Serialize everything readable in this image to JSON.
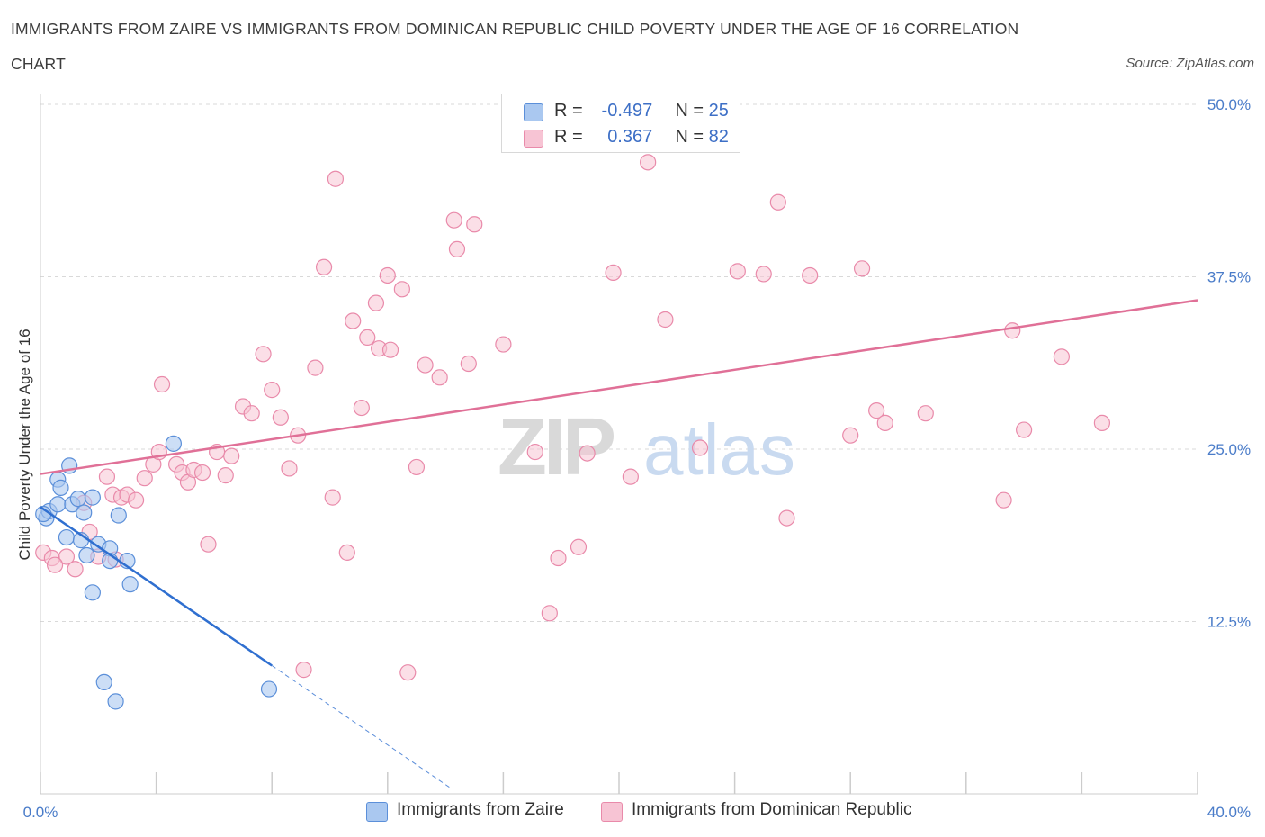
{
  "title_line1": "IMMIGRANTS FROM ZAIRE VS IMMIGRANTS FROM DOMINICAN REPUBLIC CHILD POVERTY UNDER THE AGE OF 16 CORRELATION",
  "title_line2": "CHART",
  "source": "Source: ZipAtlas.com",
  "watermark_zip": "ZIP",
  "watermark_atlas": "atlas",
  "legend": {
    "zaire": {
      "r_label": "R =",
      "r_value": "-0.497",
      "n_label": "N =",
      "n_value": "25"
    },
    "dominican": {
      "r_label": "R =",
      "r_value": "0.367",
      "n_label": "N =",
      "n_value": "82"
    }
  },
  "series_names": {
    "zaire": "Immigrants from Zaire",
    "dominican": "Immigrants from Dominican Republic"
  },
  "colors": {
    "zaire_fill": "#aac8f0",
    "zaire_stroke": "#5b8fd9",
    "zaire_line": "#2f6fd0",
    "dom_fill": "#f7c4d4",
    "dom_stroke": "#e98aaa",
    "dom_line": "#e07097",
    "axis_text": "#4a7cc9",
    "grid": "#d9d9d9"
  },
  "chart_data": {
    "type": "scatter",
    "title": "IMMIGRANTS FROM ZAIRE VS IMMIGRANTS FROM DOMINICAN REPUBLIC CHILD POVERTY UNDER THE AGE OF 16 CORRELATION CHART",
    "xlabel": "",
    "ylabel": "Child Poverty Under the Age of 16",
    "xlim": [
      0,
      40
    ],
    "ylim": [
      0,
      50
    ],
    "x_tick_labels": [
      "0.0%",
      "40.0%"
    ],
    "y_ticks": [
      12.5,
      25.0,
      37.5,
      50.0
    ],
    "y_tick_labels": [
      "12.5%",
      "25.0%",
      "37.5%",
      "50.0%"
    ],
    "grid": true,
    "series": [
      {
        "name": "Immigrants from Zaire",
        "r": -0.497,
        "n": 25,
        "trend": {
          "x0": 0.0,
          "y0": 20.8,
          "x1": 8.0,
          "y1": 9.3,
          "dashed_to_x": 14.2
        },
        "points": [
          [
            0.2,
            20.0
          ],
          [
            0.3,
            20.5
          ],
          [
            0.6,
            21.0
          ],
          [
            0.6,
            22.8
          ],
          [
            0.7,
            22.2
          ],
          [
            1.0,
            23.8
          ],
          [
            0.9,
            18.6
          ],
          [
            1.1,
            21.0
          ],
          [
            1.3,
            21.4
          ],
          [
            1.4,
            18.4
          ],
          [
            1.5,
            20.4
          ],
          [
            1.6,
            17.3
          ],
          [
            1.8,
            21.5
          ],
          [
            1.8,
            14.6
          ],
          [
            2.0,
            18.1
          ],
          [
            2.2,
            8.1
          ],
          [
            2.4,
            17.8
          ],
          [
            2.4,
            16.9
          ],
          [
            2.6,
            6.7
          ],
          [
            2.7,
            20.2
          ],
          [
            3.0,
            16.9
          ],
          [
            3.1,
            15.2
          ],
          [
            4.6,
            25.4
          ],
          [
            7.9,
            7.6
          ],
          [
            0.1,
            20.3
          ]
        ]
      },
      {
        "name": "Immigrants from Dominican Republic",
        "r": 0.367,
        "n": 82,
        "trend": {
          "x0": 0.0,
          "y0": 23.2,
          "x1": 40.0,
          "y1": 35.8
        },
        "points": [
          [
            0.1,
            17.5
          ],
          [
            0.4,
            17.1
          ],
          [
            0.9,
            17.2
          ],
          [
            1.2,
            16.3
          ],
          [
            1.5,
            21.1
          ],
          [
            1.7,
            19.0
          ],
          [
            2.0,
            17.2
          ],
          [
            2.3,
            23.0
          ],
          [
            2.5,
            21.7
          ],
          [
            2.8,
            21.5
          ],
          [
            3.0,
            21.7
          ],
          [
            3.3,
            21.3
          ],
          [
            3.6,
            22.9
          ],
          [
            3.9,
            23.9
          ],
          [
            4.1,
            24.8
          ],
          [
            4.2,
            29.7
          ],
          [
            4.7,
            23.9
          ],
          [
            4.9,
            23.3
          ],
          [
            5.1,
            22.6
          ],
          [
            5.3,
            23.5
          ],
          [
            5.6,
            23.3
          ],
          [
            5.8,
            18.1
          ],
          [
            6.1,
            24.8
          ],
          [
            6.4,
            23.1
          ],
          [
            6.6,
            24.5
          ],
          [
            7.0,
            28.1
          ],
          [
            7.3,
            27.6
          ],
          [
            7.7,
            31.9
          ],
          [
            8.0,
            29.3
          ],
          [
            8.3,
            27.3
          ],
          [
            8.6,
            23.6
          ],
          [
            8.9,
            26.0
          ],
          [
            9.1,
            9.0
          ],
          [
            9.5,
            30.9
          ],
          [
            9.8,
            38.2
          ],
          [
            10.1,
            21.5
          ],
          [
            10.2,
            44.6
          ],
          [
            10.6,
            17.5
          ],
          [
            10.8,
            34.3
          ],
          [
            11.1,
            28.0
          ],
          [
            11.3,
            33.1
          ],
          [
            11.6,
            35.6
          ],
          [
            11.7,
            32.3
          ],
          [
            12.0,
            37.6
          ],
          [
            12.1,
            32.2
          ],
          [
            12.5,
            36.6
          ],
          [
            12.7,
            8.8
          ],
          [
            13.0,
            23.7
          ],
          [
            13.3,
            31.1
          ],
          [
            13.8,
            30.2
          ],
          [
            14.3,
            41.6
          ],
          [
            14.4,
            39.5
          ],
          [
            14.8,
            31.2
          ],
          [
            15.0,
            41.3
          ],
          [
            16.0,
            32.6
          ],
          [
            17.1,
            24.8
          ],
          [
            17.6,
            13.1
          ],
          [
            17.9,
            17.1
          ],
          [
            18.6,
            17.9
          ],
          [
            18.9,
            24.7
          ],
          [
            19.8,
            37.8
          ],
          [
            20.4,
            23.0
          ],
          [
            21.0,
            45.8
          ],
          [
            21.6,
            34.4
          ],
          [
            22.8,
            25.1
          ],
          [
            24.1,
            37.9
          ],
          [
            25.0,
            37.7
          ],
          [
            25.5,
            42.9
          ],
          [
            25.8,
            20.0
          ],
          [
            26.6,
            37.6
          ],
          [
            28.0,
            26.0
          ],
          [
            28.4,
            38.1
          ],
          [
            28.9,
            27.8
          ],
          [
            29.2,
            26.9
          ],
          [
            30.6,
            27.6
          ],
          [
            33.3,
            21.3
          ],
          [
            33.6,
            33.6
          ],
          [
            34.0,
            26.4
          ],
          [
            35.3,
            31.7
          ],
          [
            36.7,
            26.9
          ],
          [
            0.5,
            16.6
          ],
          [
            2.6,
            17.0
          ]
        ]
      }
    ]
  }
}
